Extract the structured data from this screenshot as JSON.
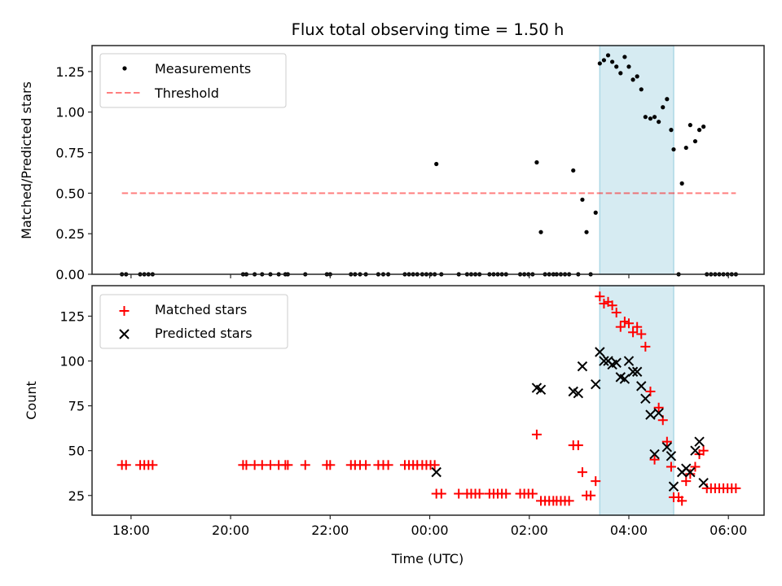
{
  "chart_data": [
    {
      "type": "scatter",
      "title": "Flux total observing time = 1.50 h",
      "xlabel": "",
      "ylabel": "Matched/Predicted stars",
      "xlim": [
        "17:13",
        "06:43"
      ],
      "ylim": [
        0.0,
        1.41
      ],
      "yticks": [
        0.0,
        0.25,
        0.5,
        0.75,
        1.0,
        1.25
      ],
      "ytick_labels": [
        "0.00",
        "0.25",
        "0.50",
        "0.75",
        "1.00",
        "1.25"
      ],
      "xticks": [
        "18:00",
        "20:00",
        "22:00",
        "00:00",
        "02:00",
        "04:00",
        "06:00"
      ],
      "xtick_labels_visible": false,
      "grid": false,
      "legend": {
        "placement": "top-left",
        "entries": [
          "Measurements",
          "Threshold"
        ]
      },
      "shaded_span": {
        "start": "03:25",
        "end": "04:54",
        "color": "#add8e6",
        "alpha": 0.5
      },
      "series": [
        {
          "name": "Measurements",
          "marker": "dot",
          "color": "#000000",
          "points": [
            [
              "17:49",
              0
            ],
            [
              "17:54",
              0
            ],
            [
              "18:11",
              0
            ],
            [
              "18:16",
              0
            ],
            [
              "18:21",
              0
            ],
            [
              "18:26",
              0
            ],
            [
              "20:15",
              0
            ],
            [
              "20:19",
              0
            ],
            [
              "20:29",
              0
            ],
            [
              "20:38",
              0
            ],
            [
              "20:48",
              0
            ],
            [
              "20:58",
              0
            ],
            [
              "21:06",
              0
            ],
            [
              "21:09",
              0
            ],
            [
              "21:30",
              0
            ],
            [
              "21:56",
              0
            ],
            [
              "22:00",
              0
            ],
            [
              "22:25",
              0
            ],
            [
              "22:30",
              0
            ],
            [
              "22:36",
              0
            ],
            [
              "22:43",
              0
            ],
            [
              "22:58",
              0
            ],
            [
              "23:04",
              0
            ],
            [
              "23:10",
              0
            ],
            [
              "23:30",
              0
            ],
            [
              "23:35",
              0
            ],
            [
              "23:40",
              0
            ],
            [
              "23:45",
              0
            ],
            [
              "23:51",
              0
            ],
            [
              "23:56",
              0
            ],
            [
              "00:01",
              0
            ],
            [
              "00:06",
              0
            ],
            [
              "00:08",
              0.68
            ],
            [
              "00:14",
              0
            ],
            [
              "00:35",
              0
            ],
            [
              "00:45",
              0
            ],
            [
              "00:50",
              0
            ],
            [
              "00:55",
              0
            ],
            [
              "01:00",
              0
            ],
            [
              "01:12",
              0
            ],
            [
              "01:17",
              0
            ],
            [
              "01:22",
              0
            ],
            [
              "01:27",
              0
            ],
            [
              "01:32",
              0
            ],
            [
              "01:49",
              0
            ],
            [
              "01:54",
              0
            ],
            [
              "01:59",
              0
            ],
            [
              "02:04",
              0
            ],
            [
              "02:09",
              0.69
            ],
            [
              "02:14",
              0.26
            ],
            [
              "02:19",
              0
            ],
            [
              "02:24",
              0
            ],
            [
              "02:29",
              0
            ],
            [
              "02:33",
              0
            ],
            [
              "02:38",
              0
            ],
            [
              "02:43",
              0
            ],
            [
              "02:48",
              0
            ],
            [
              "02:53",
              0.64
            ],
            [
              "02:59",
              0
            ],
            [
              "03:04",
              0.46
            ],
            [
              "03:09",
              0.26
            ],
            [
              "03:14",
              0
            ],
            [
              "03:20",
              0.38
            ],
            [
              "03:25",
              1.3
            ],
            [
              "03:30",
              1.32
            ],
            [
              "03:35",
              1.35
            ],
            [
              "03:40",
              1.31
            ],
            [
              "03:45",
              1.28
            ],
            [
              "03:50",
              1.24
            ],
            [
              "03:55",
              1.34
            ],
            [
              "04:00",
              1.28
            ],
            [
              "04:05",
              1.2
            ],
            [
              "04:10",
              1.22
            ],
            [
              "04:15",
              1.14
            ],
            [
              "04:20",
              0.97
            ],
            [
              "04:26",
              0.96
            ],
            [
              "04:31",
              0.97
            ],
            [
              "04:36",
              0.94
            ],
            [
              "04:41",
              1.03
            ],
            [
              "04:46",
              1.08
            ],
            [
              "04:51",
              0.89
            ],
            [
              "04:54",
              0.77
            ],
            [
              "05:00",
              0
            ],
            [
              "05:04",
              0.56
            ],
            [
              "05:09",
              0.78
            ],
            [
              "05:14",
              0.92
            ],
            [
              "05:20",
              0.82
            ],
            [
              "05:25",
              0.89
            ],
            [
              "05:30",
              0.91
            ],
            [
              "05:34",
              0
            ],
            [
              "05:39",
              0
            ],
            [
              "05:44",
              0
            ],
            [
              "05:49",
              0
            ],
            [
              "05:54",
              0
            ],
            [
              "05:59",
              0
            ],
            [
              "06:04",
              0
            ],
            [
              "06:09",
              0
            ]
          ]
        },
        {
          "name": "Threshold",
          "line_style": "dashed",
          "color": "#ff0000",
          "alpha": 0.5,
          "points": [
            [
              "17:49",
              0.5
            ],
            [
              "06:09",
              0.5
            ]
          ]
        }
      ]
    },
    {
      "type": "scatter",
      "title": "",
      "xlabel": "Time (UTC)",
      "ylabel": "Count",
      "xlim": [
        "17:13",
        "06:43"
      ],
      "ylim": [
        14,
        142
      ],
      "yticks": [
        25,
        50,
        75,
        100,
        125
      ],
      "ytick_labels": [
        "25",
        "50",
        "75",
        "100",
        "125"
      ],
      "xticks": [
        "18:00",
        "20:00",
        "22:00",
        "00:00",
        "02:00",
        "04:00",
        "06:00"
      ],
      "xtick_labels": [
        "18:00",
        "20:00",
        "22:00",
        "00:00",
        "02:00",
        "04:00",
        "06:00"
      ],
      "grid": false,
      "legend": {
        "placement": "top-left",
        "entries": [
          "Matched stars",
          "Predicted stars"
        ]
      },
      "shaded_span": {
        "start": "03:25",
        "end": "04:54",
        "color": "#add8e6",
        "alpha": 0.5
      },
      "series": [
        {
          "name": "Matched stars",
          "marker": "plus",
          "color": "#ff0000",
          "points": [
            [
              "17:49",
              42
            ],
            [
              "17:54",
              42
            ],
            [
              "18:11",
              42
            ],
            [
              "18:16",
              42
            ],
            [
              "18:21",
              42
            ],
            [
              "18:26",
              42
            ],
            [
              "20:15",
              42
            ],
            [
              "20:19",
              42
            ],
            [
              "20:29",
              42
            ],
            [
              "20:38",
              42
            ],
            [
              "20:48",
              42
            ],
            [
              "20:58",
              42
            ],
            [
              "21:06",
              42
            ],
            [
              "21:09",
              42
            ],
            [
              "21:30",
              42
            ],
            [
              "21:56",
              42
            ],
            [
              "22:00",
              42
            ],
            [
              "22:25",
              42
            ],
            [
              "22:30",
              42
            ],
            [
              "22:36",
              42
            ],
            [
              "22:43",
              42
            ],
            [
              "22:58",
              42
            ],
            [
              "23:04",
              42
            ],
            [
              "23:10",
              42
            ],
            [
              "23:30",
              42
            ],
            [
              "23:35",
              42
            ],
            [
              "23:40",
              42
            ],
            [
              "23:45",
              42
            ],
            [
              "23:51",
              42
            ],
            [
              "23:56",
              42
            ],
            [
              "00:01",
              42
            ],
            [
              "00:06",
              42
            ],
            [
              "00:08",
              26
            ],
            [
              "00:14",
              26
            ],
            [
              "00:35",
              26
            ],
            [
              "00:45",
              26
            ],
            [
              "00:50",
              26
            ],
            [
              "00:55",
              26
            ],
            [
              "01:00",
              26
            ],
            [
              "01:12",
              26
            ],
            [
              "01:17",
              26
            ],
            [
              "01:22",
              26
            ],
            [
              "01:27",
              26
            ],
            [
              "01:32",
              26
            ],
            [
              "01:49",
              26
            ],
            [
              "01:54",
              26
            ],
            [
              "01:59",
              26
            ],
            [
              "02:04",
              26
            ],
            [
              "02:09",
              59
            ],
            [
              "02:14",
              22
            ],
            [
              "02:19",
              22
            ],
            [
              "02:24",
              22
            ],
            [
              "02:29",
              22
            ],
            [
              "02:33",
              22
            ],
            [
              "02:38",
              22
            ],
            [
              "02:43",
              22
            ],
            [
              "02:48",
              22
            ],
            [
              "02:53",
              53
            ],
            [
              "02:59",
              53
            ],
            [
              "03:04",
              38
            ],
            [
              "03:09",
              25
            ],
            [
              "03:14",
              25
            ],
            [
              "03:20",
              33
            ],
            [
              "03:25",
              136
            ],
            [
              "03:30",
              132
            ],
            [
              "03:35",
              133
            ],
            [
              "03:40",
              131
            ],
            [
              "03:45",
              127
            ],
            [
              "03:50",
              119
            ],
            [
              "03:55",
              122
            ],
            [
              "04:00",
              121
            ],
            [
              "04:05",
              116
            ],
            [
              "04:10",
              119
            ],
            [
              "04:15",
              115
            ],
            [
              "04:20",
              108
            ],
            [
              "04:26",
              83
            ],
            [
              "04:31",
              45
            ],
            [
              "04:36",
              74
            ],
            [
              "04:41",
              67
            ],
            [
              "04:46",
              55
            ],
            [
              "04:51",
              41
            ],
            [
              "04:54",
              24
            ],
            [
              "05:00",
              24
            ],
            [
              "05:04",
              22
            ],
            [
              "05:09",
              33
            ],
            [
              "05:14",
              37
            ],
            [
              "05:20",
              41
            ],
            [
              "05:25",
              48
            ],
            [
              "05:30",
              50
            ],
            [
              "05:34",
              29
            ],
            [
              "05:39",
              29
            ],
            [
              "05:44",
              29
            ],
            [
              "05:49",
              29
            ],
            [
              "05:54",
              29
            ],
            [
              "05:59",
              29
            ],
            [
              "06:04",
              29
            ],
            [
              "06:09",
              29
            ]
          ]
        },
        {
          "name": "Predicted stars",
          "marker": "x",
          "color": "#000000",
          "points": [
            [
              "00:08",
              38
            ],
            [
              "02:09",
              85
            ],
            [
              "02:14",
              84
            ],
            [
              "02:53",
              83
            ],
            [
              "02:59",
              82
            ],
            [
              "03:04",
              97
            ],
            [
              "03:20",
              87
            ],
            [
              "03:25",
              105
            ],
            [
              "03:30",
              100
            ],
            [
              "03:35",
              100
            ],
            [
              "03:40",
              98
            ],
            [
              "03:45",
              99
            ],
            [
              "03:50",
              91
            ],
            [
              "03:55",
              90
            ],
            [
              "04:00",
              100
            ],
            [
              "04:05",
              94
            ],
            [
              "04:10",
              94
            ],
            [
              "04:15",
              86
            ],
            [
              "04:20",
              79
            ],
            [
              "04:26",
              70
            ],
            [
              "04:31",
              48
            ],
            [
              "04:36",
              71
            ],
            [
              "04:46",
              52
            ],
            [
              "04:51",
              47
            ],
            [
              "04:54",
              30
            ],
            [
              "05:04",
              38
            ],
            [
              "05:09",
              40
            ],
            [
              "05:14",
              38
            ],
            [
              "05:20",
              50
            ],
            [
              "05:25",
              55
            ],
            [
              "05:30",
              32
            ]
          ]
        }
      ]
    }
  ]
}
